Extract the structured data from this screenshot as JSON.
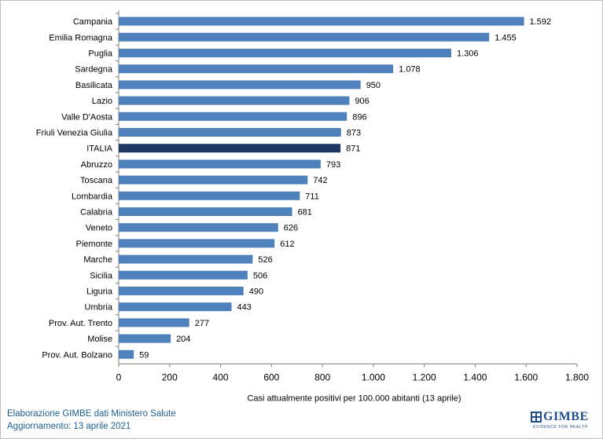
{
  "chart_data": {
    "type": "bar",
    "orientation": "horizontal",
    "categories": [
      "Campania",
      "Emilia Romagna",
      "Puglia",
      "Sardegna",
      "Basilicata",
      "Lazio",
      "Valle D'Aosta",
      "Friuli Venezia Giulia",
      "ITALIA",
      "Abruzzo",
      "Toscana",
      "Lombardia",
      "Calabria",
      "Veneto",
      "Piemonte",
      "Marche",
      "Sicilia",
      "Liguria",
      "Umbria",
      "Prov. Aut. Trento",
      "Molise",
      "Prov. Aut. Bolzano"
    ],
    "values": [
      1592,
      1455,
      1306,
      1078,
      950,
      906,
      896,
      873,
      871,
      793,
      742,
      711,
      681,
      626,
      612,
      526,
      506,
      490,
      443,
      277,
      204,
      59
    ],
    "value_labels": [
      "1.592",
      "1.455",
      "1.306",
      "1.078",
      "950",
      "906",
      "896",
      "873",
      "871",
      "793",
      "742",
      "711",
      "681",
      "626",
      "612",
      "526",
      "506",
      "490",
      "443",
      "277",
      "204",
      "59"
    ],
    "highlight_category": "ITALIA",
    "xlim": [
      0,
      1800
    ],
    "xticks": [
      0,
      200,
      400,
      600,
      800,
      1000,
      1200,
      1400,
      1600,
      1800
    ],
    "xtick_labels": [
      "0",
      "200",
      "400",
      "600",
      "800",
      "1.000",
      "1.200",
      "1.400",
      "1.600",
      "1.800"
    ],
    "xlabel": "Casi attualmente positivi per 100.000 abitanti (13 aprile)",
    "ylabel": "",
    "title": "",
    "grid": false,
    "legend": "none",
    "colors": {
      "bar": "#4f81bd",
      "highlight": "#1f3864",
      "axis": "#808080"
    }
  },
  "footer": {
    "line1": "Elaborazione GIMBE dati Ministero Salute",
    "line2": "Aggiornamento: 13 aprile 2021"
  },
  "logo": {
    "name": "GIMBE",
    "tagline": "EVIDENCE FOR HEALTH"
  }
}
